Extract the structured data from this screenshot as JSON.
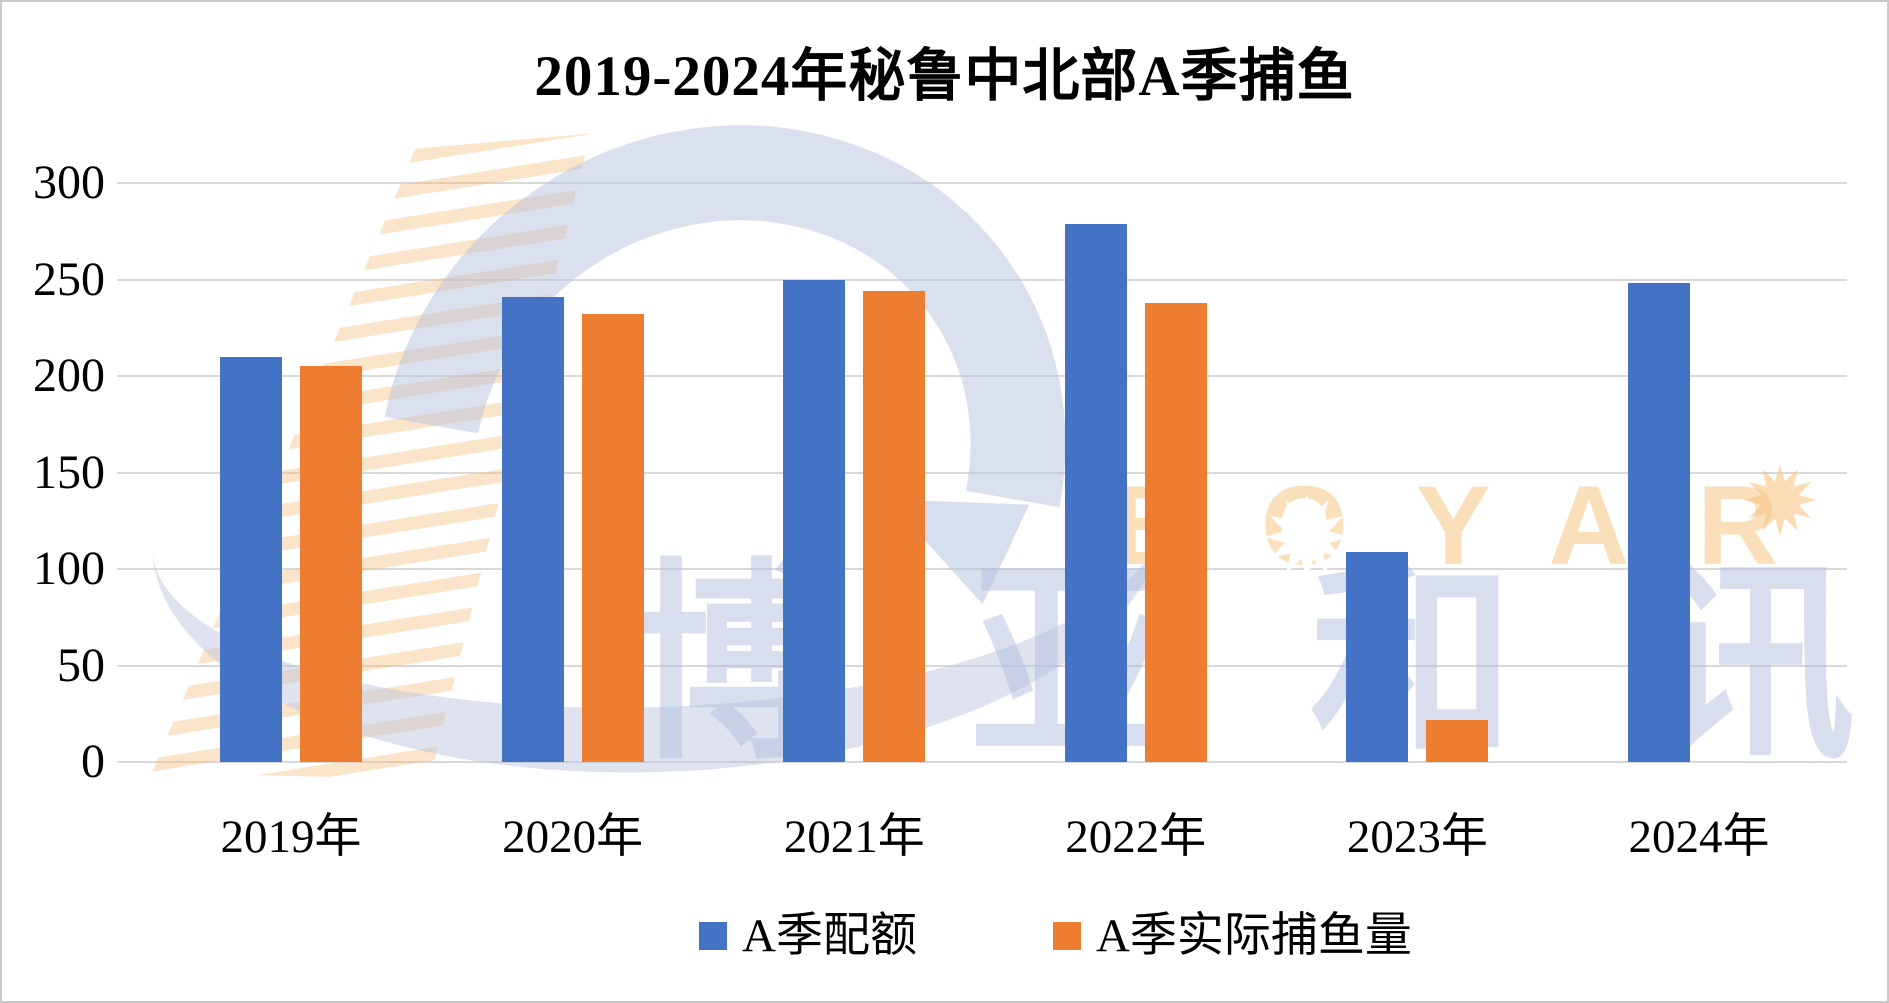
{
  "title": "2019-2024年秘鲁中北部A季捕鱼",
  "chart_data": {
    "type": "bar",
    "title": "2019-2024年秘鲁中北部A季捕鱼",
    "categories": [
      "2019年",
      "2020年",
      "2021年",
      "2022年",
      "2023年",
      "2024年"
    ],
    "series": [
      {
        "name": "A季配额",
        "key": "quota",
        "color": "#4472C4",
        "values": [
          210,
          241,
          250,
          279,
          109,
          248
        ]
      },
      {
        "name": "A季实际捕鱼量",
        "key": "catch",
        "color": "#ED7D31",
        "values": [
          205,
          232,
          244,
          238,
          22,
          null
        ]
      }
    ],
    "ylim": [
      0,
      300
    ],
    "yticks": [
      0,
      50,
      100,
      150,
      200,
      250,
      300
    ],
    "xlabel": "",
    "ylabel": "",
    "grid": true,
    "gridline_color": "#D9D9D9",
    "legend_position": "bottom"
  },
  "watermark": {
    "brand_latin": "BOYAR",
    "brand_cjk": "博亚和讯",
    "orange": "#F6C584",
    "blue": "#B7C2DE"
  }
}
